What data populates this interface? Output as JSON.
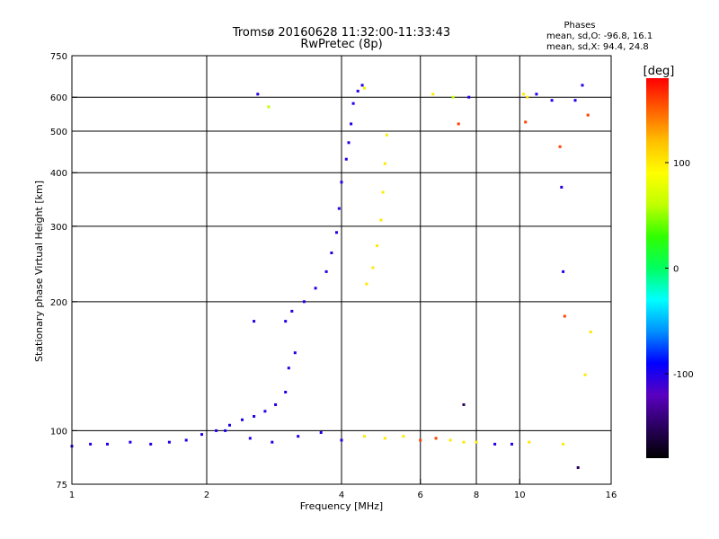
{
  "chart_data": {
    "type": "scatter",
    "title": "Tromsø 20160628 11:32:00-11:33:43",
    "subtitle": "RwPretec (8p)",
    "phases_header": "Phases",
    "phases_lines": [
      "mean, sd,O: -96.8, 16.1",
      "mean, sd,X:  94.4, 24.8"
    ],
    "xlabel": "Frequency [MHz]",
    "ylabel": "Stationary phase Virtual Height [km]",
    "x_scale": "log",
    "y_scale": "log",
    "xlim": [
      1,
      16
    ],
    "ylim": [
      75,
      750
    ],
    "xticks": [
      1,
      2,
      4,
      6,
      8,
      10,
      16
    ],
    "yticks": [
      75,
      100,
      200,
      300,
      400,
      500,
      600,
      750
    ],
    "x_gridlines": [
      2,
      4,
      6,
      8,
      10
    ],
    "y_gridlines": [
      100,
      200,
      300,
      400,
      500,
      600
    ],
    "grid": true,
    "colorbar": {
      "label": "[deg]",
      "range": [
        -180,
        180
      ],
      "ticks": [
        100,
        0,
        -100
      ],
      "colors": [
        "#000000",
        "#2a0060",
        "#5a00c0",
        "#0000ff",
        "#0090ff",
        "#00ffff",
        "#00ff60",
        "#30ff00",
        "#c0ff00",
        "#ffff00",
        "#ffc000",
        "#ff6000",
        "#ff0000"
      ]
    },
    "series": [
      {
        "values": [
          [
            1.0,
            92,
            -100
          ],
          [
            1.1,
            93,
            -100
          ],
          [
            1.2,
            93,
            -100
          ],
          [
            1.35,
            94,
            -100
          ],
          [
            1.5,
            93,
            -100
          ],
          [
            1.65,
            94,
            -100
          ],
          [
            1.8,
            95,
            -100
          ],
          [
            1.95,
            98,
            -100
          ],
          [
            2.1,
            100,
            -100
          ],
          [
            2.25,
            103,
            -100
          ],
          [
            2.4,
            106,
            -100
          ],
          [
            2.55,
            108,
            -100
          ],
          [
            2.7,
            111,
            -100
          ],
          [
            2.85,
            115,
            -100
          ],
          [
            3.0,
            123,
            -100
          ],
          [
            3.05,
            140,
            -100
          ],
          [
            3.15,
            152,
            -100
          ]
        ]
      },
      {
        "values": [
          [
            2.55,
            180,
            -100
          ],
          [
            3.0,
            180,
            -100
          ],
          [
            3.1,
            190,
            -100
          ],
          [
            3.3,
            200,
            -100
          ],
          [
            3.5,
            215,
            -100
          ],
          [
            3.7,
            235,
            -100
          ],
          [
            3.8,
            260,
            -100
          ],
          [
            3.9,
            290,
            -100
          ],
          [
            3.95,
            330,
            -100
          ],
          [
            4.0,
            380,
            -100
          ],
          [
            4.1,
            430,
            -100
          ],
          [
            4.15,
            470,
            -100
          ],
          [
            4.2,
            520,
            -100
          ],
          [
            4.25,
            580,
            -100
          ],
          [
            4.35,
            620,
            -100
          ],
          [
            4.45,
            640,
            -100
          ]
        ]
      },
      {
        "values": [
          [
            4.55,
            220,
            100
          ],
          [
            4.7,
            240,
            100
          ],
          [
            4.8,
            270,
            100
          ],
          [
            4.9,
            310,
            100
          ],
          [
            4.95,
            360,
            100
          ],
          [
            5.0,
            420,
            100
          ],
          [
            5.05,
            490,
            100
          ]
        ]
      },
      {
        "values": [
          [
            2.2,
            100,
            -100
          ],
          [
            2.5,
            96,
            -100
          ],
          [
            2.8,
            94,
            -100
          ],
          [
            3.2,
            97,
            -100
          ],
          [
            3.6,
            99,
            -100
          ],
          [
            4.0,
            95,
            -100
          ],
          [
            4.5,
            97,
            100
          ],
          [
            5.0,
            96,
            100
          ],
          [
            5.5,
            97,
            100
          ],
          [
            6.0,
            95,
            160
          ],
          [
            6.5,
            96,
            160
          ],
          [
            7.0,
            95,
            100
          ],
          [
            7.5,
            94,
            100
          ],
          [
            8.0,
            94,
            100
          ],
          [
            8.8,
            93,
            -100
          ],
          [
            9.6,
            93,
            -100
          ],
          [
            10.5,
            94,
            100
          ],
          [
            12.5,
            93,
            100
          ]
        ]
      },
      {
        "values": [
          [
            2.6,
            610,
            -100
          ],
          [
            2.75,
            570,
            60
          ],
          [
            4.5,
            630,
            100
          ],
          [
            6.4,
            610,
            100
          ],
          [
            7.1,
            600,
            60
          ],
          [
            7.3,
            520,
            160
          ],
          [
            7.7,
            600,
            -100
          ],
          [
            10.2,
            610,
            100
          ],
          [
            10.3,
            525,
            160
          ],
          [
            10.4,
            600,
            100
          ],
          [
            10.9,
            610,
            -100
          ],
          [
            11.8,
            590,
            -100
          ],
          [
            12.3,
            460,
            160
          ],
          [
            12.4,
            370,
            -100
          ],
          [
            12.5,
            235,
            -100
          ],
          [
            12.6,
            185,
            160
          ],
          [
            13.3,
            590,
            -100
          ],
          [
            13.8,
            640,
            -100
          ],
          [
            14.2,
            545,
            160
          ],
          [
            14.4,
            170,
            100
          ],
          [
            14.0,
            135,
            100
          ],
          [
            13.5,
            82,
            -150
          ],
          [
            7.5,
            115,
            -150
          ]
        ]
      }
    ]
  }
}
